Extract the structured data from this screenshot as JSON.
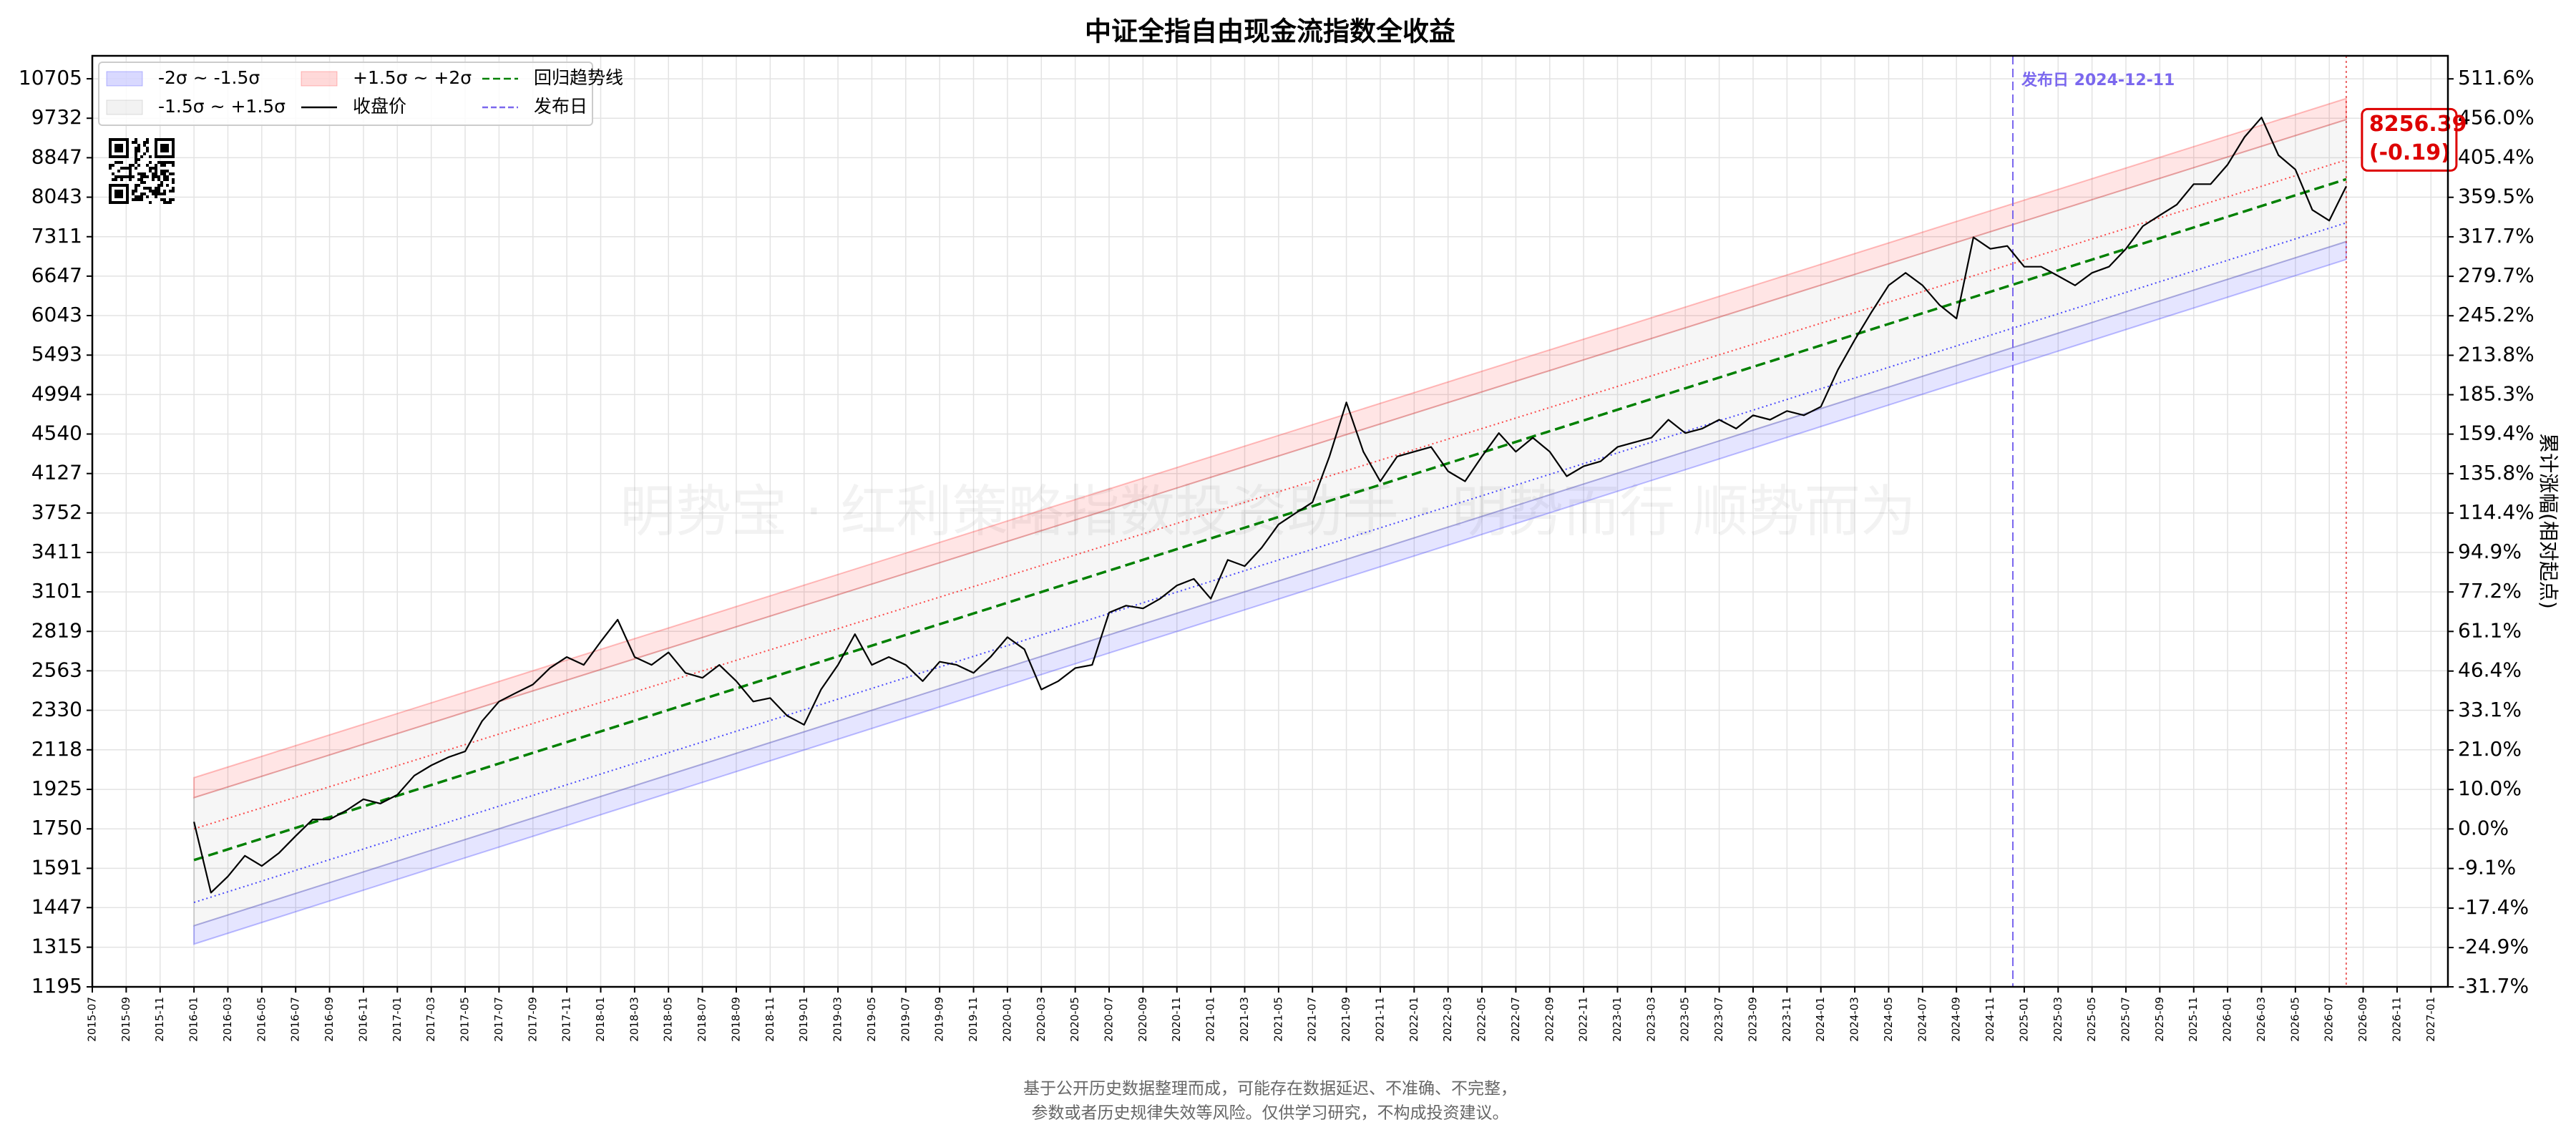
{
  "chart_data": {
    "type": "line",
    "title": "中证全指自由现金流指数全收益",
    "watermark": "明势宝 · 红利策略指数投资助手 · 明势而行 顺势而为",
    "y2label": "累计涨幅(相对起点)",
    "footnote": [
      "基于公开历史数据整理而成，可能存在数据延迟、不准确、不完整，",
      "参数或者历史规律失效等风险。仅供学习研究，不构成投资建议。"
    ],
    "legend": "upper left",
    "grid": true,
    "yscale": "log",
    "ylim": [
      1195,
      11315
    ],
    "yticks": [
      1195,
      1315,
      1447,
      1591,
      1750,
      1925,
      2118,
      2330,
      2563,
      2819,
      3101,
      3411,
      3752,
      4127,
      4540,
      4994,
      5493,
      6043,
      6647,
      7311,
      8043,
      8847,
      9732,
      10705
    ],
    "y2scale": "log-growth",
    "y2lim": [
      -31.7,
      546.6
    ],
    "y2ticks": [
      {
        "value": -31.7,
        "label": "-31.7%"
      },
      {
        "value": -24.9,
        "label": "-24.9%"
      },
      {
        "value": -17.4,
        "label": "-17.4%"
      },
      {
        "value": -9.1,
        "label": "-9.1%"
      },
      {
        "value": 0.0,
        "label": "0.0%"
      },
      {
        "value": 10.0,
        "label": "10.0%"
      },
      {
        "value": 21.0,
        "label": "21.0%"
      },
      {
        "value": 33.1,
        "label": "33.1%"
      },
      {
        "value": 46.4,
        "label": "46.4%"
      },
      {
        "value": 61.1,
        "label": "61.1%"
      },
      {
        "value": 77.2,
        "label": "77.2%"
      },
      {
        "value": 94.9,
        "label": "94.9%"
      },
      {
        "value": 114.4,
        "label": "114.4%"
      },
      {
        "value": 135.8,
        "label": "135.8%"
      },
      {
        "value": 159.4,
        "label": "159.4%"
      },
      {
        "value": 185.3,
        "label": "185.3%"
      },
      {
        "value": 213.8,
        "label": "213.8%"
      },
      {
        "value": 245.2,
        "label": "245.2%"
      },
      {
        "value": 279.7,
        "label": "279.7%"
      },
      {
        "value": 317.7,
        "label": "317.7%"
      },
      {
        "value": 359.5,
        "label": "359.5%"
      },
      {
        "value": 405.4,
        "label": "405.4%"
      },
      {
        "value": 456.0,
        "label": "456.0%"
      },
      {
        "value": 511.6,
        "label": "511.6%"
      }
    ],
    "xlim": [
      "2015-07",
      "2027-02"
    ],
    "xticks": [
      "2015-07",
      "2015-09",
      "2015-11",
      "2016-01",
      "2016-03",
      "2016-05",
      "2016-07",
      "2016-09",
      "2016-11",
      "2017-01",
      "2017-03",
      "2017-05",
      "2017-07",
      "2017-09",
      "2017-11",
      "2018-01",
      "2018-03",
      "2018-05",
      "2018-07",
      "2018-09",
      "2018-11",
      "2019-01",
      "2019-03",
      "2019-05",
      "2019-07",
      "2019-09",
      "2019-11",
      "2020-01",
      "2020-03",
      "2020-05",
      "2020-07",
      "2020-09",
      "2020-11",
      "2021-01",
      "2021-03",
      "2021-05",
      "2021-07",
      "2021-09",
      "2021-11",
      "2022-01",
      "2022-03",
      "2022-05",
      "2022-07",
      "2022-09",
      "2022-11",
      "2023-01",
      "2023-03",
      "2023-05",
      "2023-07",
      "2023-09",
      "2023-11",
      "2024-01",
      "2024-03",
      "2024-05",
      "2024-07",
      "2024-09",
      "2024-11",
      "2025-01",
      "2025-03",
      "2025-05",
      "2025-07",
      "2025-09",
      "2025-11",
      "2026-01",
      "2026-03",
      "2026-05",
      "2026-07",
      "2026-09",
      "2026-11",
      "2027-01"
    ],
    "x": [
      "2016-01",
      "2016-02",
      "2016-03",
      "2016-04",
      "2016-05",
      "2016-06",
      "2016-07",
      "2016-08",
      "2016-09",
      "2016-10",
      "2016-11",
      "2016-12",
      "2017-01",
      "2017-02",
      "2017-03",
      "2017-04",
      "2017-05",
      "2017-06",
      "2017-07",
      "2017-08",
      "2017-09",
      "2017-10",
      "2017-11",
      "2017-12",
      "2018-01",
      "2018-02",
      "2018-03",
      "2018-04",
      "2018-05",
      "2018-06",
      "2018-07",
      "2018-08",
      "2018-09",
      "2018-10",
      "2018-11",
      "2018-12",
      "2019-01",
      "2019-02",
      "2019-03",
      "2019-04",
      "2019-05",
      "2019-06",
      "2019-07",
      "2019-08",
      "2019-09",
      "2019-10",
      "2019-11",
      "2019-12",
      "2020-01",
      "2020-02",
      "2020-03",
      "2020-04",
      "2020-05",
      "2020-06",
      "2020-07",
      "2020-08",
      "2020-09",
      "2020-10",
      "2020-11",
      "2020-12",
      "2021-01",
      "2021-02",
      "2021-03",
      "2021-04",
      "2021-05",
      "2021-06",
      "2021-07",
      "2021-08",
      "2021-09",
      "2021-10",
      "2021-11",
      "2021-12",
      "2022-01",
      "2022-02",
      "2022-03",
      "2022-04",
      "2022-05",
      "2022-06",
      "2022-07",
      "2022-08",
      "2022-09",
      "2022-10",
      "2022-11",
      "2022-12",
      "2023-01",
      "2023-02",
      "2023-03",
      "2023-04",
      "2023-05",
      "2023-06",
      "2023-07",
      "2023-08",
      "2023-09",
      "2023-10",
      "2023-11",
      "2023-12",
      "2024-01",
      "2024-02",
      "2024-03",
      "2024-04",
      "2024-05",
      "2024-06",
      "2024-07",
      "2024-08",
      "2024-09",
      "2024-10",
      "2024-11",
      "2024-12",
      "2025-01",
      "2025-02",
      "2025-03",
      "2025-04",
      "2025-05",
      "2025-06",
      "2025-07",
      "2025-08",
      "2025-09",
      "2025-10",
      "2025-11",
      "2025-12",
      "2026-01",
      "2026-02",
      "2026-03",
      "2026-04",
      "2026-05",
      "2026-06",
      "2026-07",
      "2026-08"
    ],
    "series": [
      {
        "name": "收盘价",
        "color": "#000000",
        "values": [
          1780,
          1500,
          1560,
          1640,
          1600,
          1650,
          1720,
          1790,
          1790,
          1830,
          1880,
          1860,
          1900,
          1990,
          2040,
          2080,
          2110,
          2270,
          2380,
          2430,
          2480,
          2580,
          2650,
          2600,
          2750,
          2900,
          2650,
          2600,
          2680,
          2550,
          2520,
          2600,
          2500,
          2380,
          2400,
          2300,
          2250,
          2450,
          2600,
          2800,
          2600,
          2650,
          2600,
          2500,
          2620,
          2600,
          2550,
          2650,
          2780,
          2700,
          2450,
          2500,
          2580,
          2600,
          2950,
          3000,
          2980,
          3050,
          3150,
          3200,
          3050,
          3350,
          3300,
          3450,
          3650,
          3750,
          3850,
          4300,
          4900,
          4350,
          4050,
          4300,
          4350,
          4400,
          4150,
          4050,
          4300,
          4550,
          4350,
          4500,
          4350,
          4100,
          4200,
          4250,
          4400,
          4450,
          4500,
          4700,
          4550,
          4600,
          4700,
          4600,
          4750,
          4700,
          4800,
          4750,
          4850,
          5300,
          5700,
          6100,
          6500,
          6700,
          6500,
          6200,
          6000,
          7300,
          7100,
          7150,
          6800,
          6800,
          6650,
          6500,
          6700,
          6800,
          7100,
          7500,
          7700,
          7900,
          8300,
          8300,
          8700,
          9300,
          9750,
          8900,
          8600,
          7800,
          7600,
          8256.39
        ]
      }
    ],
    "fit_x": [
      "2016-01",
      "2026-08"
    ],
    "trend": {
      "name": "回归趋势线",
      "color": "#008000",
      "values": [
        1623,
        8400
      ]
    },
    "bands": [
      {
        "name": "-2σ ~ -1.5σ",
        "color": "#0000ff",
        "lower": [
          1325,
          6920
        ],
        "upper": [
          1385,
          7225
        ]
      },
      {
        "name": "-1.5σ ~ +1.5σ",
        "color": "#808080",
        "lower": [
          1385,
          7225
        ],
        "upper": [
          1887,
          9700
        ]
      },
      {
        "name": "+1.5σ ~ +2σ",
        "color": "#ff0000",
        "lower": [
          1887,
          9700
        ],
        "upper": [
          1980,
          10207
        ]
      }
    ],
    "sigma_lines": [
      {
        "color": "#0000ff",
        "values": [
          1465,
          7560
        ]
      },
      {
        "color": "#ff0000",
        "values": [
          1750,
          8800
        ]
      }
    ],
    "vline": {
      "name": "发布日",
      "label": "发布日 2024-12-11",
      "x": "2024-12-11",
      "color": "#7b68ee"
    },
    "last": {
      "x": "2026-08",
      "value": 8256.39,
      "label": "8256.39",
      "change": -0.19,
      "change_label": "(-0.19)",
      "color": "#dd0000"
    }
  }
}
